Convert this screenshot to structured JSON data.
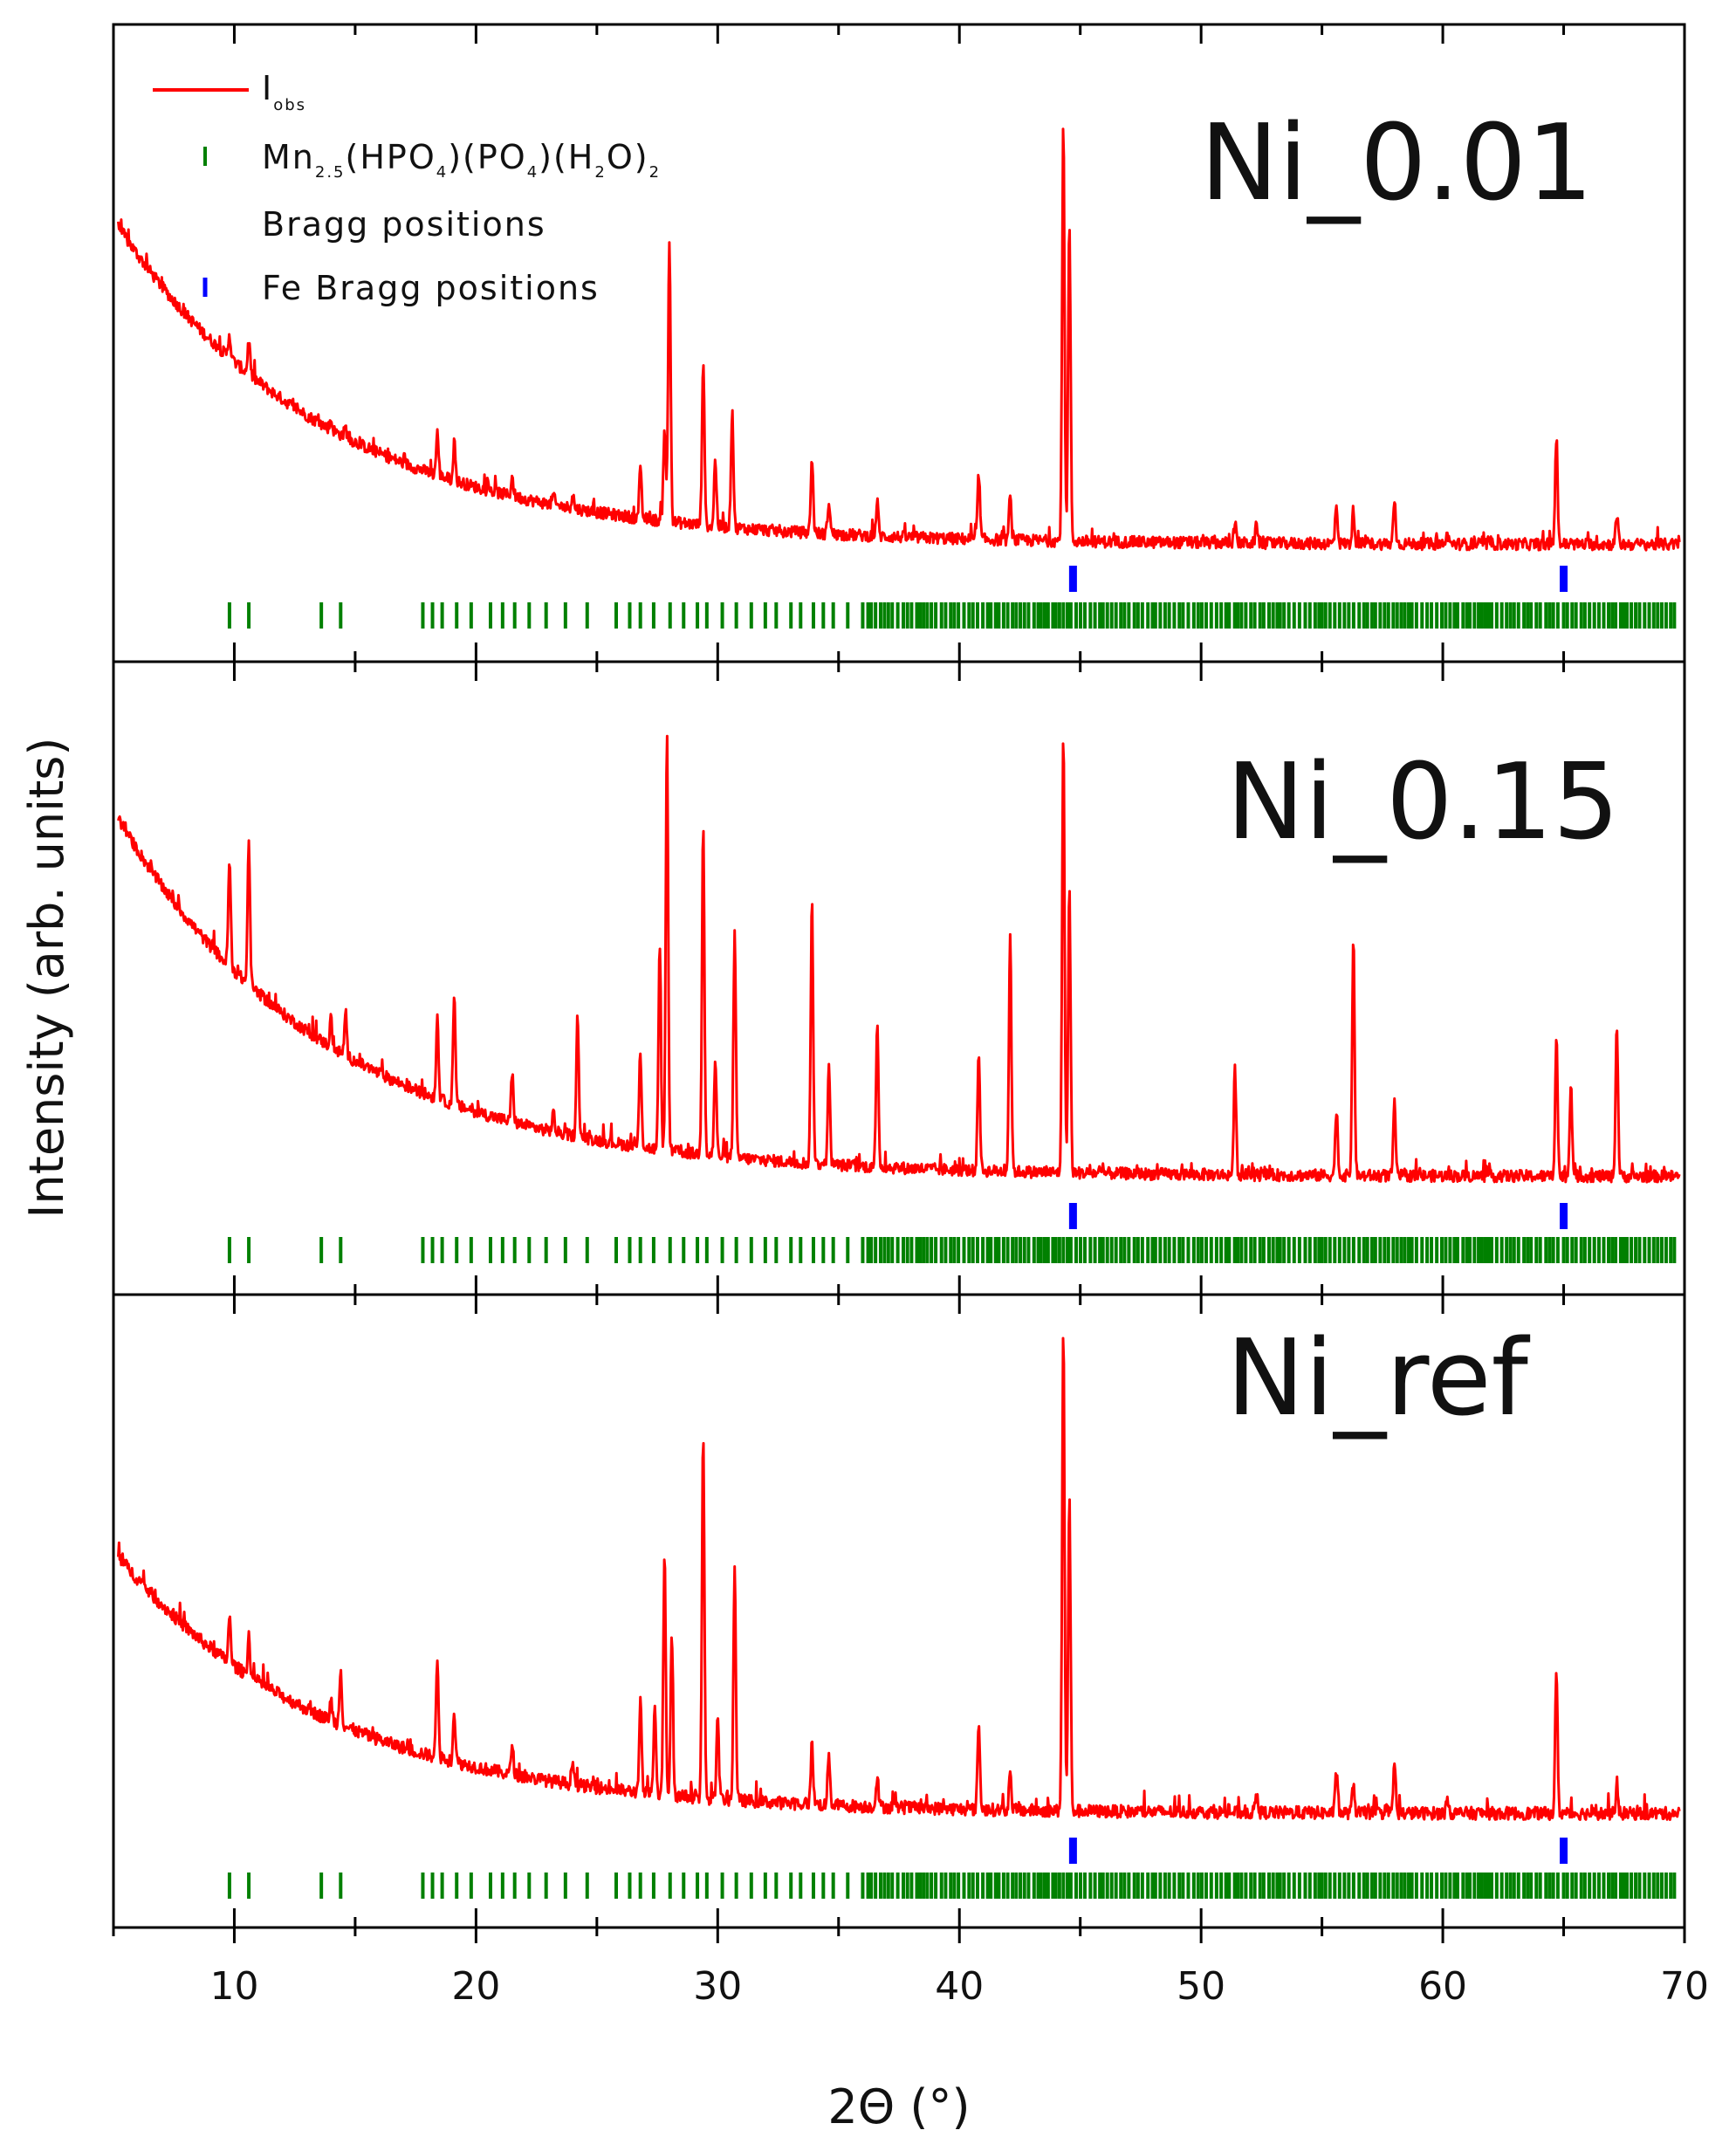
{
  "chart_data": {
    "type": "line",
    "xlabel": "2Θ (°)",
    "ylabel": "Intensity (arb. units)",
    "xlim": [
      5,
      70
    ],
    "x_ticks": [
      10,
      20,
      30,
      40,
      50,
      60,
      70
    ],
    "colors": {
      "observed": "#ff0000",
      "phase_bragg": "#008000",
      "fe_bragg": "#0000ff"
    },
    "legend": {
      "observed": {
        "main": "I",
        "sub": "obs"
      },
      "phase": {
        "parts": [
          {
            "t": "Mn",
            "sub": false
          },
          {
            "t": "2.5",
            "sub": true
          },
          {
            "t": "(HPO",
            "sub": false
          },
          {
            "t": "4",
            "sub": true
          },
          {
            "t": ")(PO",
            "sub": false
          },
          {
            "t": "4",
            "sub": true
          },
          {
            "t": ")(H",
            "sub": false
          },
          {
            "t": "2",
            "sub": true
          },
          {
            "t": "O)",
            "sub": false
          },
          {
            "t": "2",
            "sub": true
          }
        ],
        "line2": "Bragg positions"
      },
      "fe": "Fe Bragg positions"
    },
    "fe_bragg_positions": [
      44.7,
      65.0
    ],
    "panels": [
      {
        "label": "Ni_0.01",
        "background": {
          "start": 0.72,
          "end": 0.03
        },
        "peaks": [
          [
            9.8,
            0.05
          ],
          [
            10.6,
            0.07
          ],
          [
            14.0,
            0.02
          ],
          [
            14.6,
            0.02
          ],
          [
            18.4,
            0.09
          ],
          [
            19.1,
            0.08
          ],
          [
            21.5,
            0.04
          ],
          [
            23.2,
            0.02
          ],
          [
            24.0,
            0.03
          ],
          [
            26.8,
            0.1
          ],
          [
            27.8,
            0.2
          ],
          [
            28.0,
            0.6
          ],
          [
            29.4,
            0.35
          ],
          [
            29.9,
            0.14
          ],
          [
            30.6,
            0.25
          ],
          [
            33.9,
            0.16
          ],
          [
            34.6,
            0.07
          ],
          [
            36.6,
            0.07
          ],
          [
            40.8,
            0.14
          ],
          [
            42.1,
            0.09
          ],
          [
            44.3,
            0.88
          ],
          [
            44.55,
            0.68
          ],
          [
            51.4,
            0.04
          ],
          [
            52.3,
            0.04
          ],
          [
            55.6,
            0.08
          ],
          [
            56.3,
            0.07
          ],
          [
            58.0,
            0.09
          ],
          [
            60.2,
            0.02
          ],
          [
            64.7,
            0.23
          ],
          [
            67.2,
            0.06
          ]
        ]
      },
      {
        "label": "Ni_0.15",
        "background": {
          "start": 0.82,
          "end": 0.05
        },
        "peaks": [
          [
            9.8,
            0.22
          ],
          [
            10.6,
            0.3
          ],
          [
            14.0,
            0.06
          ],
          [
            14.6,
            0.08
          ],
          [
            18.4,
            0.17
          ],
          [
            19.1,
            0.22
          ],
          [
            21.5,
            0.1
          ],
          [
            23.2,
            0.04
          ],
          [
            24.2,
            0.25
          ],
          [
            26.8,
            0.2
          ],
          [
            27.6,
            0.42
          ],
          [
            27.9,
            0.86
          ],
          [
            29.4,
            0.7
          ],
          [
            29.9,
            0.2
          ],
          [
            30.7,
            0.47
          ],
          [
            33.9,
            0.55
          ],
          [
            34.6,
            0.2
          ],
          [
            36.6,
            0.31
          ],
          [
            40.8,
            0.25
          ],
          [
            42.1,
            0.5
          ],
          [
            44.3,
            0.93
          ],
          [
            44.55,
            0.6
          ],
          [
            51.4,
            0.22
          ],
          [
            55.6,
            0.14
          ],
          [
            56.3,
            0.5
          ],
          [
            58.0,
            0.15
          ],
          [
            64.7,
            0.3
          ],
          [
            65.3,
            0.2
          ],
          [
            67.2,
            0.32
          ]
        ]
      },
      {
        "label": "Ni_ref",
        "background": {
          "start": 0.55,
          "end": 0.03
        },
        "peaks": [
          [
            9.8,
            0.09
          ],
          [
            10.6,
            0.08
          ],
          [
            14.0,
            0.04
          ],
          [
            14.4,
            0.11
          ],
          [
            18.4,
            0.2
          ],
          [
            19.1,
            0.1
          ],
          [
            21.5,
            0.06
          ],
          [
            24.0,
            0.05
          ],
          [
            26.8,
            0.18
          ],
          [
            27.4,
            0.18
          ],
          [
            27.8,
            0.48
          ],
          [
            28.1,
            0.32
          ],
          [
            29.4,
            0.72
          ],
          [
            30.0,
            0.16
          ],
          [
            30.7,
            0.46
          ],
          [
            33.9,
            0.12
          ],
          [
            34.6,
            0.1
          ],
          [
            36.6,
            0.06
          ],
          [
            40.8,
            0.17
          ],
          [
            42.1,
            0.07
          ],
          [
            44.3,
            0.95
          ],
          [
            44.55,
            0.62
          ],
          [
            52.3,
            0.04
          ],
          [
            55.6,
            0.08
          ],
          [
            56.3,
            0.06
          ],
          [
            58.0,
            0.1
          ],
          [
            60.2,
            0.03
          ],
          [
            64.7,
            0.28
          ],
          [
            67.2,
            0.05
          ]
        ]
      }
    ]
  }
}
